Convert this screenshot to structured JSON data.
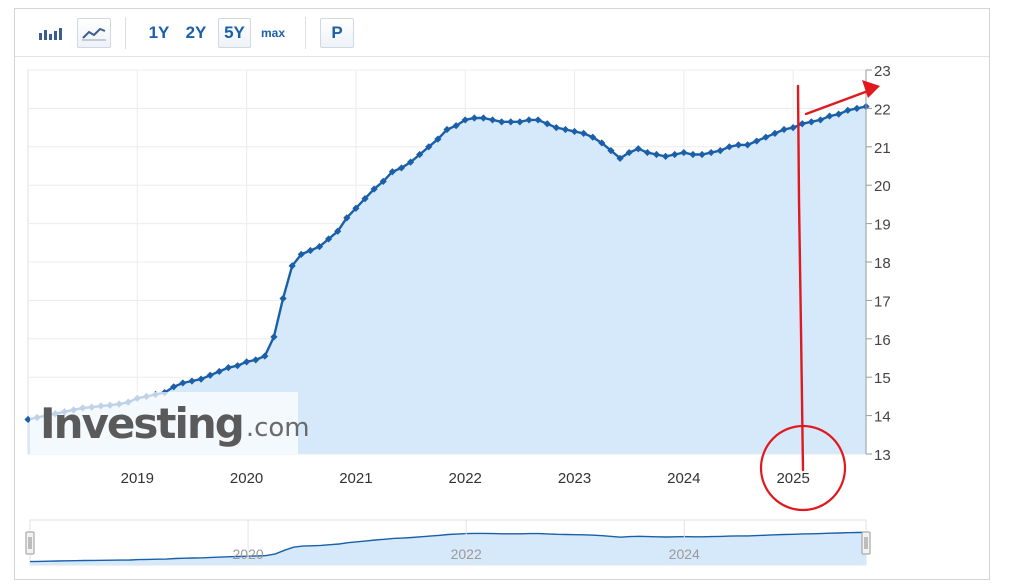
{
  "toolbar": {
    "bar_icon": "bar-chart-icon",
    "line_icon": "line-chart-icon",
    "ranges": [
      "1Y",
      "2Y",
      "5Y",
      "max"
    ],
    "selected_range": "5Y",
    "p_label": "P"
  },
  "watermark": {
    "brand": "Investing",
    "suffix": ".com"
  },
  "colors": {
    "line": "#1a5fa8",
    "fill": "#d6e9fb",
    "annotation": "#e0191f"
  },
  "chart_data": {
    "type": "area",
    "x_tick_labels": [
      "2019",
      "2020",
      "2021",
      "2022",
      "2023",
      "2024",
      "2025"
    ],
    "y_tick_labels": [
      "13",
      "14",
      "15",
      "16",
      "17",
      "18",
      "19",
      "20",
      "21",
      "22",
      "23"
    ],
    "ylim": [
      13,
      23
    ],
    "xlim": [
      "2018-01",
      "2025-09"
    ],
    "grid": true,
    "y_axis_position": "right",
    "x": [
      "2018-01",
      "2018-02",
      "2018-03",
      "2018-04",
      "2018-05",
      "2018-06",
      "2018-07",
      "2018-08",
      "2018-09",
      "2018-10",
      "2018-11",
      "2018-12",
      "2019-01",
      "2019-02",
      "2019-03",
      "2019-04",
      "2019-05",
      "2019-06",
      "2019-07",
      "2019-08",
      "2019-09",
      "2019-10",
      "2019-11",
      "2019-12",
      "2020-01",
      "2020-02",
      "2020-03",
      "2020-04",
      "2020-05",
      "2020-06",
      "2020-07",
      "2020-08",
      "2020-09",
      "2020-10",
      "2020-11",
      "2020-12",
      "2021-01",
      "2021-02",
      "2021-03",
      "2021-04",
      "2021-05",
      "2021-06",
      "2021-07",
      "2021-08",
      "2021-09",
      "2021-10",
      "2021-11",
      "2021-12",
      "2022-01",
      "2022-02",
      "2022-03",
      "2022-04",
      "2022-05",
      "2022-06",
      "2022-07",
      "2022-08",
      "2022-09",
      "2022-10",
      "2022-11",
      "2022-12",
      "2023-01",
      "2023-02",
      "2023-03",
      "2023-04",
      "2023-05",
      "2023-06",
      "2023-07",
      "2023-08",
      "2023-09",
      "2023-10",
      "2023-11",
      "2023-12",
      "2024-01",
      "2024-02",
      "2024-03",
      "2024-04",
      "2024-05",
      "2024-06",
      "2024-07",
      "2024-08",
      "2024-09",
      "2024-10",
      "2024-11",
      "2024-12",
      "2025-01",
      "2025-02",
      "2025-03",
      "2025-04",
      "2025-05",
      "2025-06",
      "2025-07",
      "2025-08",
      "2025-09"
    ],
    "y": [
      13.9,
      13.95,
      14.0,
      14.05,
      14.1,
      14.15,
      14.2,
      14.22,
      14.25,
      14.27,
      14.3,
      14.35,
      14.45,
      14.5,
      14.55,
      14.6,
      14.75,
      14.85,
      14.9,
      14.95,
      15.05,
      15.15,
      15.25,
      15.3,
      15.4,
      15.45,
      15.55,
      16.05,
      17.05,
      17.9,
      18.2,
      18.3,
      18.4,
      18.6,
      18.8,
      19.15,
      19.4,
      19.65,
      19.9,
      20.1,
      20.35,
      20.45,
      20.6,
      20.8,
      21.0,
      21.2,
      21.45,
      21.55,
      21.7,
      21.75,
      21.75,
      21.7,
      21.65,
      21.65,
      21.65,
      21.7,
      21.7,
      21.6,
      21.5,
      21.45,
      21.4,
      21.35,
      21.25,
      21.1,
      20.9,
      20.7,
      20.85,
      20.95,
      20.85,
      20.8,
      20.75,
      20.8,
      20.85,
      20.8,
      20.8,
      20.85,
      20.9,
      21.0,
      21.05,
      21.05,
      21.15,
      21.25,
      21.35,
      21.45,
      21.5,
      21.6,
      21.65,
      21.7,
      21.8,
      21.85,
      21.95,
      22.0,
      22.05
    ]
  },
  "navigator": {
    "labels": [
      "2020",
      "2022",
      "2024"
    ]
  }
}
